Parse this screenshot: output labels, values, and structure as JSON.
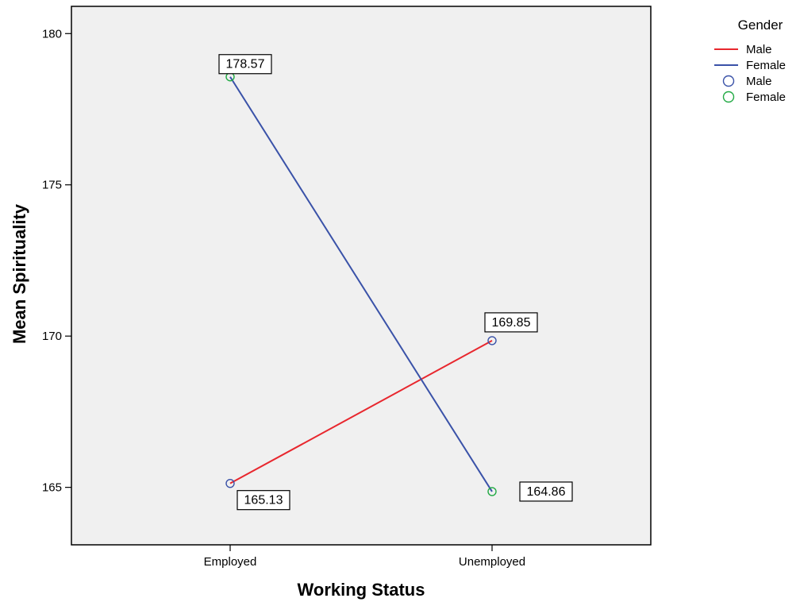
{
  "chart_data": {
    "type": "line",
    "xlabel": "Working Status",
    "ylabel": "Mean Spirituality",
    "categories": [
      "Employed",
      "Unemployed"
    ],
    "ylim": [
      163.1,
      180.9
    ],
    "yticks": [
      165,
      170,
      175,
      180
    ],
    "grid": false,
    "legend_placement": "right",
    "legend": {
      "title": "Gender",
      "lines": [
        {
          "name": "Male",
          "color": "#e8272e"
        },
        {
          "name": "Female",
          "color": "#3a52a8"
        }
      ],
      "markers": [
        {
          "name": "Male",
          "color": "#3a52a8"
        },
        {
          "name": "Female",
          "color": "#22aa44"
        }
      ]
    },
    "series": [
      {
        "name": "Male",
        "values": [
          165.13,
          169.85
        ],
        "labels": [
          "165.13",
          "169.85"
        ],
        "line_color": "#e8272e",
        "marker_color": "#3a52a8"
      },
      {
        "name": "Female",
        "values": [
          178.57,
          164.86
        ],
        "labels": [
          "178.57",
          "164.86"
        ],
        "line_color": "#3a52a8",
        "marker_color": "#22aa44"
      }
    ]
  }
}
